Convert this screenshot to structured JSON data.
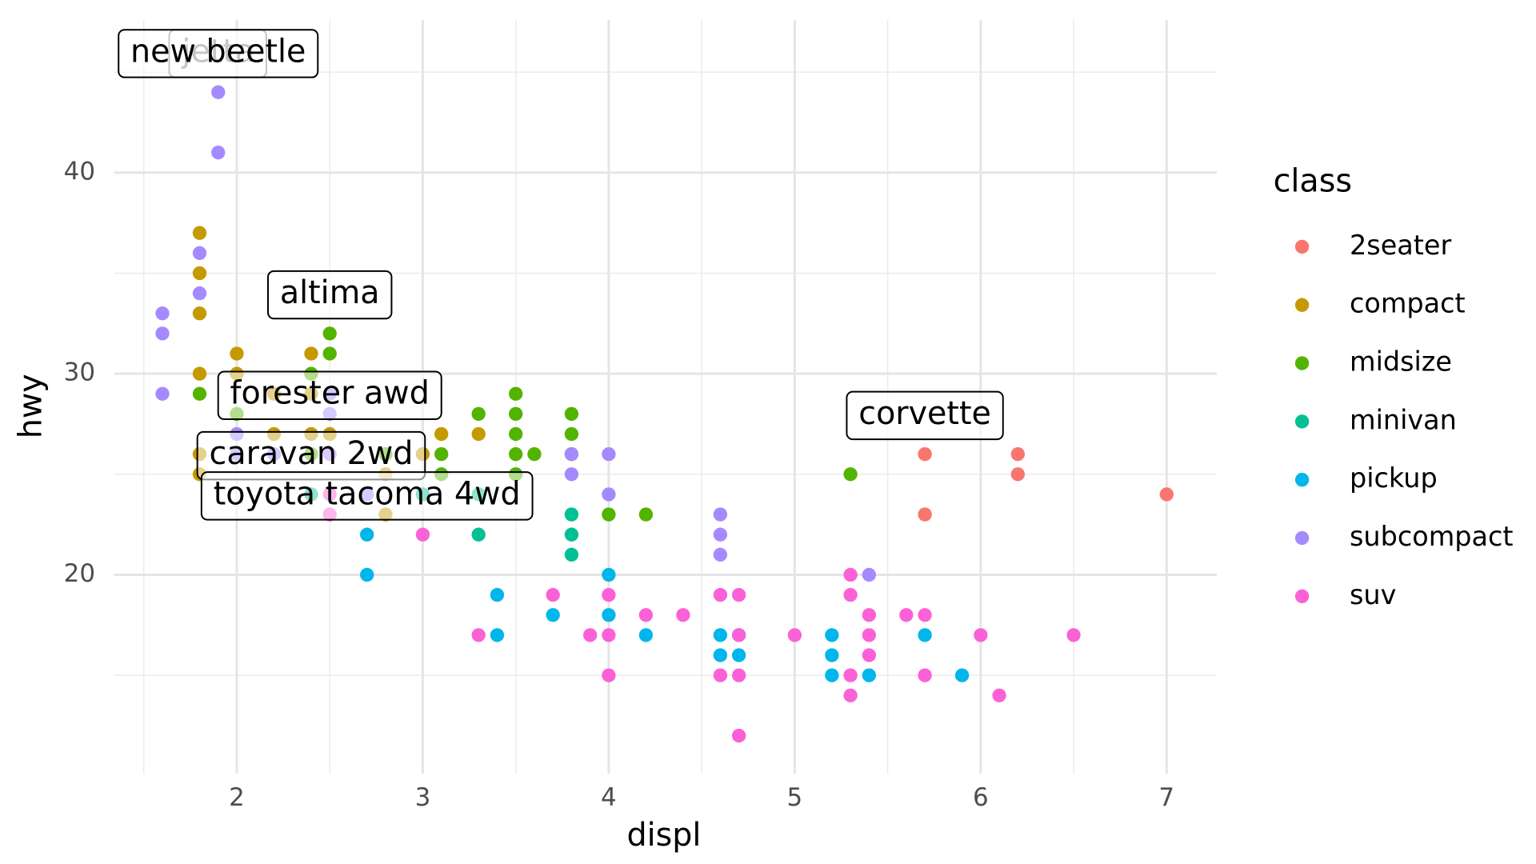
{
  "chart_data": {
    "type": "scatter",
    "x_label": "displ",
    "y_label": "hwy",
    "legend_title": "class",
    "xlim": [
      1.34,
      7.27
    ],
    "ylim": [
      10.1,
      47.6
    ],
    "xticks": [
      2,
      3,
      4,
      5,
      6,
      7
    ],
    "yticks": [
      20,
      30,
      40
    ],
    "grid": true,
    "legend": "right",
    "series": [
      {
        "name": "2seater",
        "color": "#F8766D",
        "x": [
          5.7,
          5.7,
          6.2,
          6.2,
          7
        ],
        "values": [
          26,
          23,
          26,
          25,
          24
        ]
      },
      {
        "name": "compact",
        "color": "#C49A00",
        "x": [
          1.8,
          1.8,
          1.8,
          2,
          2.4,
          1.8,
          2,
          2.2,
          2.4,
          1.8,
          1.8,
          2.2,
          2.4,
          2.5,
          2.8,
          2.8,
          3,
          3.1,
          3.3
        ],
        "values": [
          37,
          35,
          33,
          31,
          31,
          30,
          30,
          29,
          29,
          26,
          25,
          27,
          27,
          27,
          25,
          23,
          26,
          27,
          27
        ]
      },
      {
        "name": "midsize",
        "color": "#53B400",
        "x": [
          1.8,
          2,
          2.4,
          2.5,
          2.5,
          2.4,
          2.8,
          3.1,
          3.1,
          3.3,
          3.5,
          3.5,
          3.5,
          3.5,
          3.5,
          3.6,
          3.8,
          3.8,
          3.8,
          4,
          4.2,
          5.3
        ],
        "values": [
          29,
          28,
          30,
          32,
          31,
          26,
          26,
          26,
          25,
          28,
          29,
          28,
          27,
          26,
          25,
          26,
          28,
          27,
          26,
          23,
          23,
          25
        ]
      },
      {
        "name": "minivan",
        "color": "#00C094",
        "x": [
          2.4,
          3,
          3.3,
          3.3,
          3.8,
          3.8,
          3.8
        ],
        "values": [
          24,
          24,
          24,
          22,
          23,
          22,
          21
        ]
      },
      {
        "name": "pickup",
        "color": "#00B6EB",
        "x": [
          2.7,
          2.7,
          3.4,
          3.4,
          3.7,
          4,
          4,
          4.2,
          4.6,
          4.6,
          4.7,
          4.7,
          5.2,
          5.2,
          5.2,
          5.4,
          5.7,
          5.9
        ],
        "values": [
          22,
          20,
          19,
          17,
          18,
          20,
          18,
          17,
          17,
          16,
          17,
          16,
          17,
          16,
          15,
          15,
          17,
          15
        ]
      },
      {
        "name": "subcompact",
        "color": "#A58AFF",
        "x": [
          1.6,
          1.6,
          1.6,
          1.8,
          1.8,
          1.9,
          1.9,
          2,
          2,
          2.2,
          2.5,
          2.5,
          2.5,
          2.7,
          3.8,
          3.8,
          4,
          4,
          4.6,
          4.6,
          4.6,
          5.4
        ],
        "values": [
          33,
          32,
          29,
          36,
          34,
          44,
          41,
          27,
          26,
          26,
          29,
          28,
          26,
          24,
          26,
          25,
          26,
          24,
          23,
          22,
          21,
          20
        ]
      },
      {
        "name": "suv",
        "color": "#FB61D7",
        "x": [
          2.5,
          2.5,
          3,
          3.3,
          3.7,
          3.9,
          4,
          4,
          4,
          4.2,
          4.4,
          4.6,
          4.6,
          4.7,
          4.7,
          4.7,
          4.7,
          5,
          5.3,
          5.3,
          5.3,
          5.3,
          5.4,
          5.4,
          5.4,
          5.6,
          5.7,
          5.7,
          6,
          6.1,
          6.5
        ],
        "values": [
          24,
          23,
          22,
          17,
          19,
          17,
          19,
          17,
          15,
          18,
          18,
          19,
          15,
          19,
          17,
          15,
          12,
          17,
          20,
          19,
          15,
          14,
          18,
          17,
          16,
          18,
          18,
          15,
          17,
          14,
          17
        ]
      }
    ],
    "labels": [
      {
        "text": "jetta",
        "x": 1.9,
        "y": 44
      },
      {
        "text": "new beetle",
        "x": 1.9,
        "y": 44
      },
      {
        "text": "altima",
        "x": 2.5,
        "y": 32
      },
      {
        "text": "forester awd",
        "x": 2.5,
        "y": 27
      },
      {
        "text": "corvette",
        "x": 5.7,
        "y": 26
      },
      {
        "text": "caravan 2wd",
        "x": 2.4,
        "y": 24
      },
      {
        "text": "toyota tacoma 4wd",
        "x": 2.7,
        "y": 22
      }
    ]
  }
}
